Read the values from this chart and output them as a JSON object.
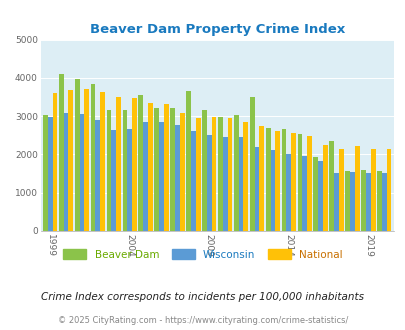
{
  "title": "Beaver Dam Property Crime Index",
  "years": [
    1999,
    2000,
    2001,
    2002,
    2003,
    2004,
    2005,
    2006,
    2007,
    2008,
    2009,
    2010,
    2011,
    2012,
    2013,
    2014,
    2015,
    2016,
    2017,
    2018,
    2019,
    2020
  ],
  "beaver_dam": [
    3020,
    4100,
    3980,
    3840,
    3150,
    3170,
    3550,
    3220,
    3210,
    3670,
    3150,
    2980,
    3040,
    3490,
    2680,
    2660,
    2540,
    1940,
    2360,
    1560,
    1600,
    1560
  ],
  "wisconsin": [
    2990,
    3080,
    3050,
    2900,
    2640,
    2660,
    2840,
    2840,
    2760,
    2600,
    2510,
    2460,
    2460,
    2200,
    2110,
    2000,
    1960,
    1840,
    1520,
    1540,
    1520,
    1520
  ],
  "national": [
    3600,
    3680,
    3700,
    3620,
    3510,
    3470,
    3350,
    3320,
    3070,
    2960,
    2970,
    2950,
    2860,
    2750,
    2620,
    2550,
    2490,
    2240,
    2150,
    2210,
    2130,
    2130
  ],
  "color_green": "#8bc34a",
  "color_blue": "#5b9bd5",
  "color_orange": "#ffc107",
  "bg_color": "#ddeef5",
  "ylim": [
    0,
    5000
  ],
  "yticks": [
    0,
    1000,
    2000,
    3000,
    4000,
    5000
  ],
  "xtick_years": [
    1999,
    2004,
    2009,
    2014,
    2019
  ],
  "subtitle": "Crime Index corresponds to incidents per 100,000 inhabitants",
  "footer": "© 2025 CityRating.com - https://www.cityrating.com/crime-statistics/",
  "legend_labels": [
    "Beaver Dam",
    "Wisconsin",
    "National"
  ],
  "legend_text_colors": [
    "#6aaa00",
    "#1a7abf",
    "#c87000"
  ],
  "title_color": "#1a7abf",
  "subtitle_color": "#222222",
  "footer_color": "#888888"
}
